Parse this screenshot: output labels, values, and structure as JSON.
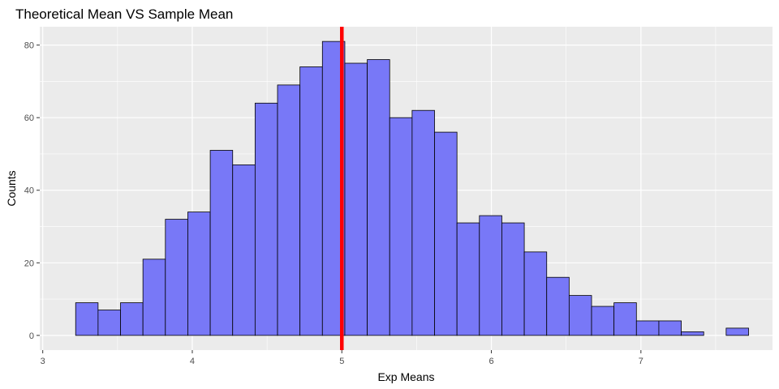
{
  "chart_data": {
    "type": "bar",
    "title": "Theoretical Mean VS Sample Mean",
    "xlabel": "Exp Means",
    "ylabel": "Counts",
    "xlim": [
      2.98,
      7.88
    ],
    "ylim": [
      -4.05,
      85.05
    ],
    "x_ticks": [
      3,
      4,
      5,
      6,
      7
    ],
    "y_ticks": [
      0,
      20,
      40,
      60,
      80
    ],
    "x_minor_ticks": [
      3.5,
      4.5,
      5.5,
      6.5,
      7.5
    ],
    "y_minor_ticks": [
      10,
      30,
      50,
      70
    ],
    "bins": {
      "start": 3.22,
      "width": 0.15,
      "counts": [
        9,
        7,
        9,
        21,
        32,
        34,
        51,
        47,
        64,
        69,
        74,
        81,
        75,
        76,
        60,
        62,
        56,
        31,
        33,
        31,
        23,
        16,
        11,
        8,
        9,
        4,
        4,
        1,
        0,
        2
      ]
    },
    "vline": {
      "x": 5,
      "color": "#ff0000"
    },
    "bar_fill": "#7878f7",
    "bar_stroke": "#000000",
    "panel_background": "#ebebeb",
    "grid": true,
    "legend": "none"
  }
}
